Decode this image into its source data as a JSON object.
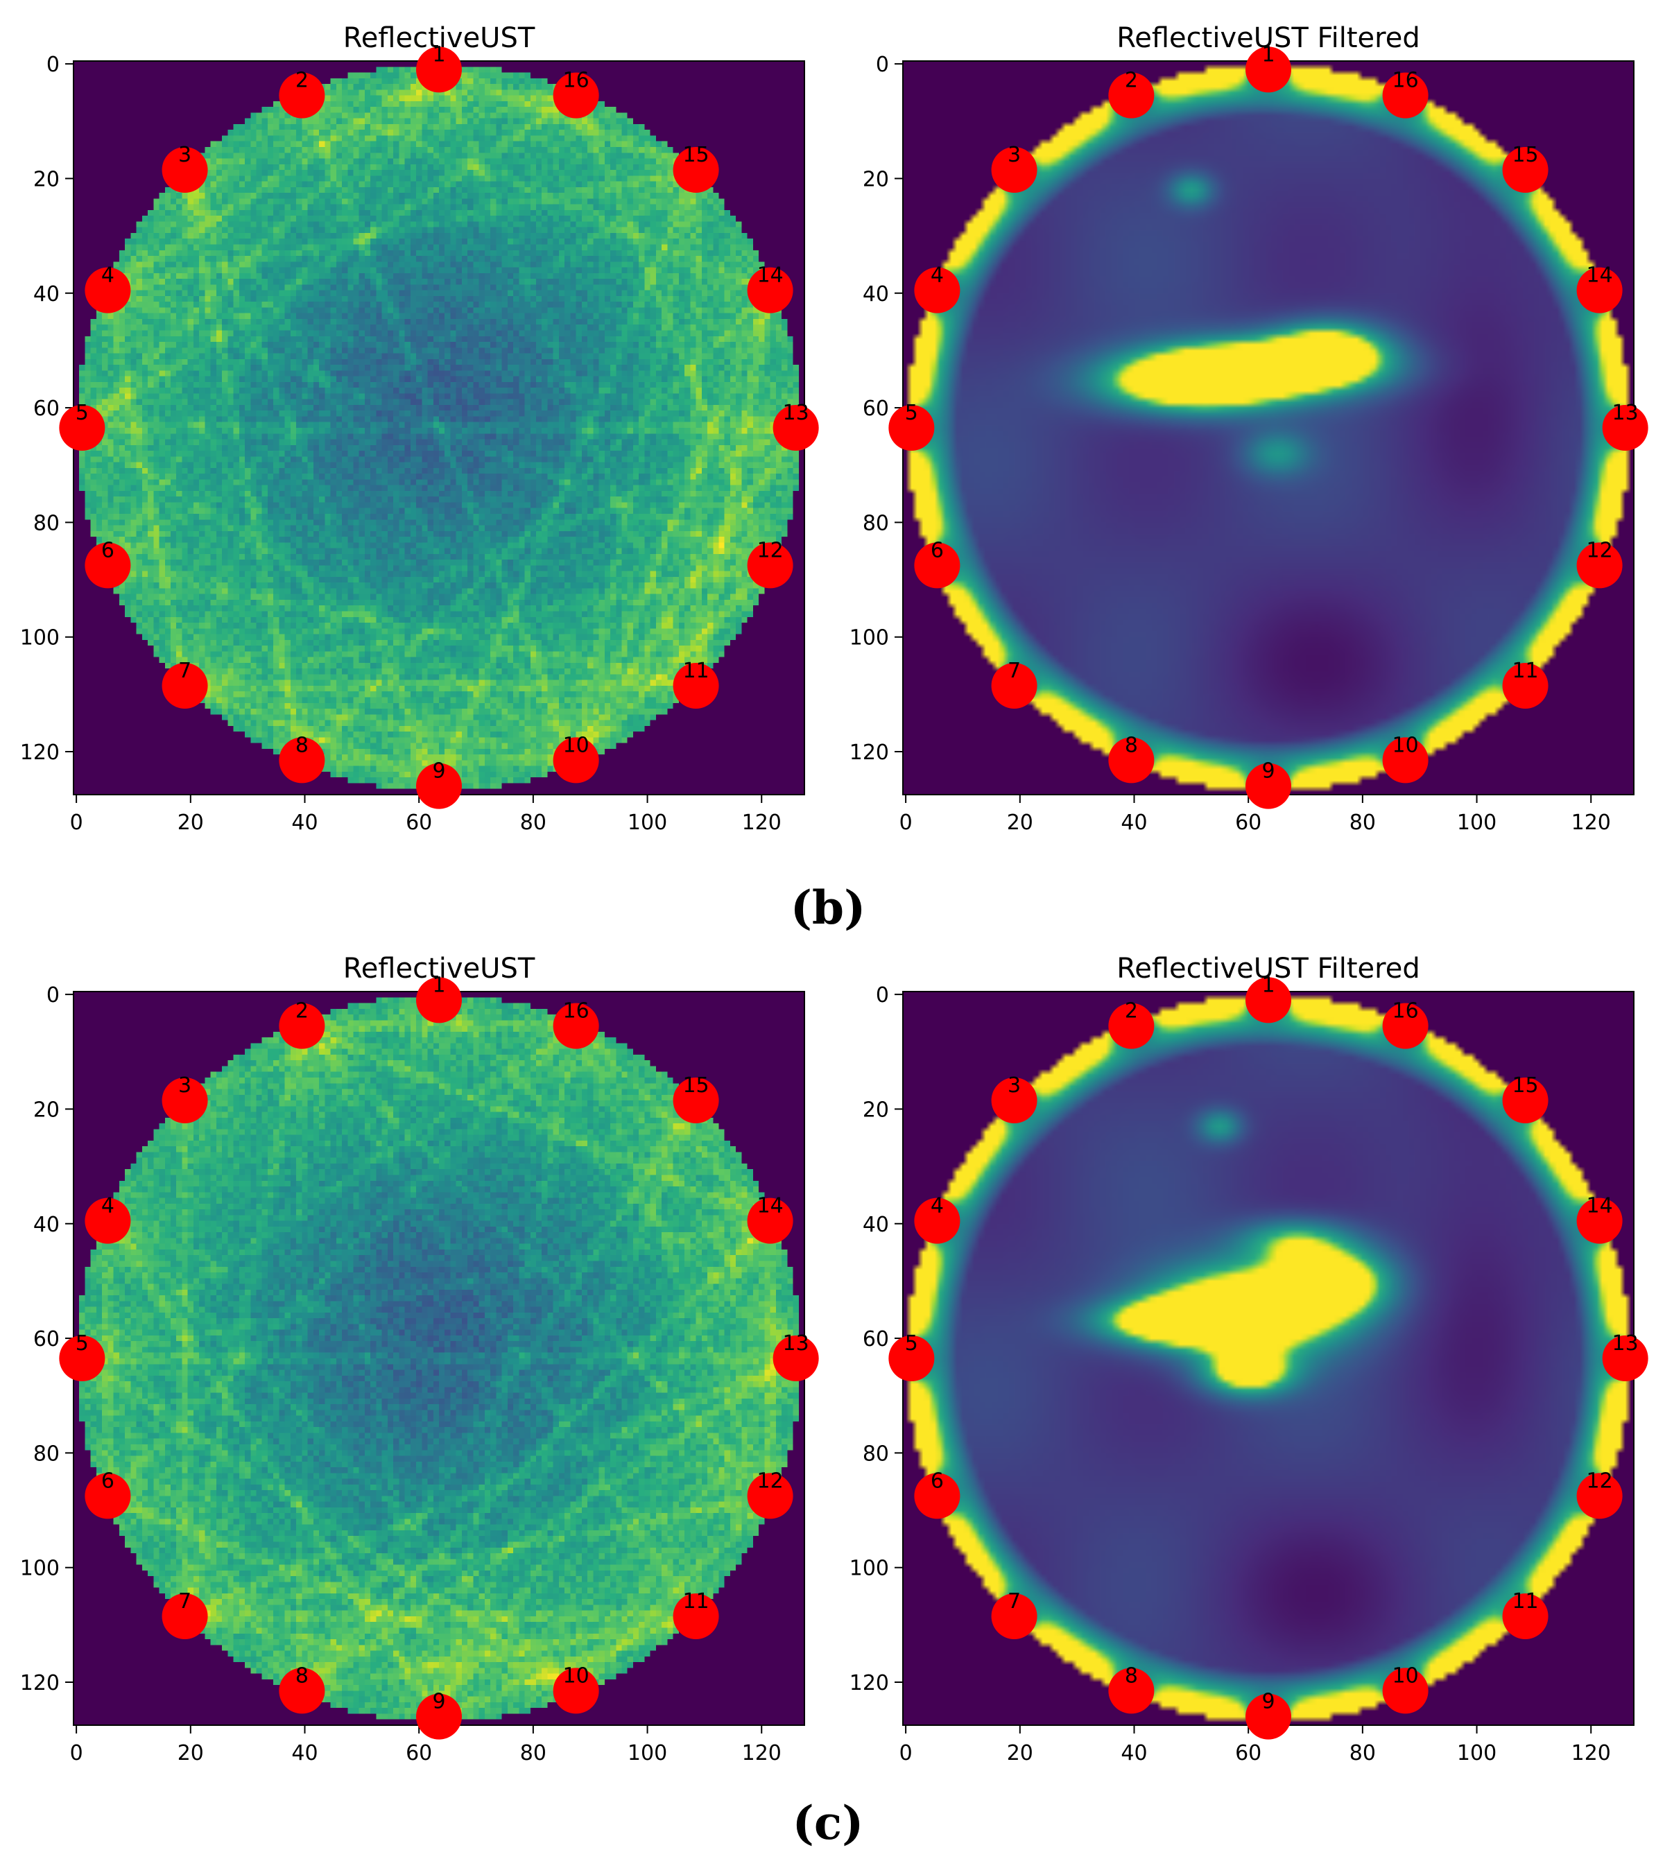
{
  "figure": {
    "panel_labels": [
      "(b)",
      "(c)"
    ]
  },
  "colors": {
    "background": "#440154",
    "sensor": "#ff0000",
    "label": "#000000",
    "colormap": [
      "#440154",
      "#472d7b",
      "#3b528b",
      "#2c728e",
      "#21918c",
      "#28ae80",
      "#5ec962",
      "#addc30",
      "#fde725"
    ]
  },
  "chart_data": [
    {
      "id": "b-left",
      "type": "heatmap",
      "panel": "(b)",
      "title": "ReflectiveUST",
      "xlabel": "",
      "ylabel": "",
      "xlim": [
        0,
        127
      ],
      "ylim": [
        127,
        0
      ],
      "xticks": [
        0,
        20,
        40,
        60,
        80,
        100,
        120
      ],
      "yticks": [
        0,
        20,
        40,
        60,
        80,
        100,
        120
      ],
      "style": "raw",
      "grid": false,
      "circle": {
        "center": [
          63.5,
          63.5
        ],
        "radius": 63.5
      },
      "sensors": [
        {
          "label": "1",
          "x": 63.5,
          "y": 1
        },
        {
          "label": "2",
          "x": 39.5,
          "y": 5.5
        },
        {
          "label": "3",
          "x": 19,
          "y": 18.5
        },
        {
          "label": "4",
          "x": 5.5,
          "y": 39.5
        },
        {
          "label": "5",
          "x": 1,
          "y": 63.5
        },
        {
          "label": "6",
          "x": 5.5,
          "y": 87.5
        },
        {
          "label": "7",
          "x": 19,
          "y": 108.5
        },
        {
          "label": "8",
          "x": 39.5,
          "y": 121.5
        },
        {
          "label": "9",
          "x": 63.5,
          "y": 126
        },
        {
          "label": "10",
          "x": 87.5,
          "y": 121.5
        },
        {
          "label": "11",
          "x": 108.5,
          "y": 108.5
        },
        {
          "label": "12",
          "x": 121.5,
          "y": 87.5
        },
        {
          "label": "13",
          "x": 126,
          "y": 63.5
        },
        {
          "label": "14",
          "x": 121.5,
          "y": 39.5
        },
        {
          "label": "15",
          "x": 108.5,
          "y": 18.5
        },
        {
          "label": "16",
          "x": 87.5,
          "y": 5.5
        }
      ]
    },
    {
      "id": "b-right",
      "type": "heatmap",
      "panel": "(b)",
      "title": "ReflectiveUST Filtered",
      "xlabel": "",
      "ylabel": "",
      "xlim": [
        0,
        127
      ],
      "ylim": [
        127,
        0
      ],
      "xticks": [
        0,
        20,
        40,
        60,
        80,
        100,
        120
      ],
      "yticks": [
        0,
        20,
        40,
        60,
        80,
        100,
        120
      ],
      "style": "filtered",
      "grid": false,
      "circle": {
        "center": [
          63.5,
          63.5
        ],
        "radius": 63.5
      },
      "blobs": [
        {
          "x": 62,
          "y": 53,
          "rx": 20,
          "ry": 5,
          "v": 0.95
        },
        {
          "x": 50,
          "y": 56,
          "rx": 16,
          "ry": 5,
          "v": 0.8
        },
        {
          "x": 74,
          "y": 50,
          "rx": 10,
          "ry": 5,
          "v": 0.7
        },
        {
          "x": 50,
          "y": 22,
          "rx": 4,
          "ry": 3,
          "v": 0.35
        },
        {
          "x": 65,
          "y": 68,
          "rx": 6,
          "ry": 4,
          "v": 0.3
        }
      ],
      "sensors": [
        {
          "label": "1",
          "x": 63.5,
          "y": 1
        },
        {
          "label": "2",
          "x": 39.5,
          "y": 5.5
        },
        {
          "label": "3",
          "x": 19,
          "y": 18.5
        },
        {
          "label": "4",
          "x": 5.5,
          "y": 39.5
        },
        {
          "label": "5",
          "x": 1,
          "y": 63.5
        },
        {
          "label": "6",
          "x": 5.5,
          "y": 87.5
        },
        {
          "label": "7",
          "x": 19,
          "y": 108.5
        },
        {
          "label": "8",
          "x": 39.5,
          "y": 121.5
        },
        {
          "label": "9",
          "x": 63.5,
          "y": 126
        },
        {
          "label": "10",
          "x": 87.5,
          "y": 121.5
        },
        {
          "label": "11",
          "x": 108.5,
          "y": 108.5
        },
        {
          "label": "12",
          "x": 121.5,
          "y": 87.5
        },
        {
          "label": "13",
          "x": 126,
          "y": 63.5
        },
        {
          "label": "14",
          "x": 121.5,
          "y": 39.5
        },
        {
          "label": "15",
          "x": 108.5,
          "y": 18.5
        },
        {
          "label": "16",
          "x": 87.5,
          "y": 5.5
        }
      ]
    },
    {
      "id": "c-left",
      "type": "heatmap",
      "panel": "(c)",
      "title": "ReflectiveUST",
      "xlabel": "",
      "ylabel": "",
      "xlim": [
        0,
        127
      ],
      "ylim": [
        127,
        0
      ],
      "xticks": [
        0,
        20,
        40,
        60,
        80,
        100,
        120
      ],
      "yticks": [
        0,
        20,
        40,
        60,
        80,
        100,
        120
      ],
      "style": "raw",
      "grid": false,
      "circle": {
        "center": [
          63.5,
          63.5
        ],
        "radius": 63.5
      },
      "sensors": [
        {
          "label": "1",
          "x": 63.5,
          "y": 1
        },
        {
          "label": "2",
          "x": 39.5,
          "y": 5.5
        },
        {
          "label": "3",
          "x": 19,
          "y": 18.5
        },
        {
          "label": "4",
          "x": 5.5,
          "y": 39.5
        },
        {
          "label": "5",
          "x": 1,
          "y": 63.5
        },
        {
          "label": "6",
          "x": 5.5,
          "y": 87.5
        },
        {
          "label": "7",
          "x": 19,
          "y": 108.5
        },
        {
          "label": "8",
          "x": 39.5,
          "y": 121.5
        },
        {
          "label": "9",
          "x": 63.5,
          "y": 126
        },
        {
          "label": "10",
          "x": 87.5,
          "y": 121.5
        },
        {
          "label": "11",
          "x": 108.5,
          "y": 108.5
        },
        {
          "label": "12",
          "x": 121.5,
          "y": 87.5
        },
        {
          "label": "13",
          "x": 126,
          "y": 63.5
        },
        {
          "label": "14",
          "x": 121.5,
          "y": 39.5
        },
        {
          "label": "15",
          "x": 108.5,
          "y": 18.5
        },
        {
          "label": "16",
          "x": 87.5,
          "y": 5.5
        }
      ]
    },
    {
      "id": "c-right",
      "type": "heatmap",
      "panel": "(c)",
      "title": "ReflectiveUST Filtered",
      "xlabel": "",
      "ylabel": "",
      "xlim": [
        0,
        127
      ],
      "ylim": [
        127,
        0
      ],
      "xticks": [
        0,
        20,
        40,
        60,
        80,
        100,
        120
      ],
      "yticks": [
        0,
        20,
        40,
        60,
        80,
        100,
        120
      ],
      "style": "filtered",
      "grid": false,
      "circle": {
        "center": [
          63.5,
          63.5
        ],
        "radius": 63.5
      },
      "blobs": [
        {
          "x": 60,
          "y": 55,
          "rx": 17,
          "ry": 8,
          "v": 1.0
        },
        {
          "x": 48,
          "y": 57,
          "rx": 14,
          "ry": 4,
          "v": 0.85
        },
        {
          "x": 75,
          "y": 50,
          "rx": 10,
          "ry": 6,
          "v": 0.75
        },
        {
          "x": 60,
          "y": 66,
          "rx": 8,
          "ry": 4,
          "v": 0.7
        },
        {
          "x": 55,
          "y": 23,
          "rx": 4,
          "ry": 3,
          "v": 0.35
        },
        {
          "x": 68,
          "y": 43,
          "rx": 10,
          "ry": 4,
          "v": 0.45
        }
      ],
      "sensors": [
        {
          "label": "1",
          "x": 63.5,
          "y": 1
        },
        {
          "label": "2",
          "x": 39.5,
          "y": 5.5
        },
        {
          "label": "3",
          "x": 19,
          "y": 18.5
        },
        {
          "label": "4",
          "x": 5.5,
          "y": 39.5
        },
        {
          "label": "5",
          "x": 1,
          "y": 63.5
        },
        {
          "label": "6",
          "x": 5.5,
          "y": 87.5
        },
        {
          "label": "7",
          "x": 19,
          "y": 108.5
        },
        {
          "label": "8",
          "x": 39.5,
          "y": 121.5
        },
        {
          "label": "9",
          "x": 63.5,
          "y": 126
        },
        {
          "label": "10",
          "x": 87.5,
          "y": 121.5
        },
        {
          "label": "11",
          "x": 108.5,
          "y": 108.5
        },
        {
          "label": "12",
          "x": 121.5,
          "y": 87.5
        },
        {
          "label": "13",
          "x": 126,
          "y": 63.5
        },
        {
          "label": "14",
          "x": 121.5,
          "y": 39.5
        },
        {
          "label": "15",
          "x": 108.5,
          "y": 18.5
        },
        {
          "label": "16",
          "x": 87.5,
          "y": 5.5
        }
      ]
    }
  ]
}
